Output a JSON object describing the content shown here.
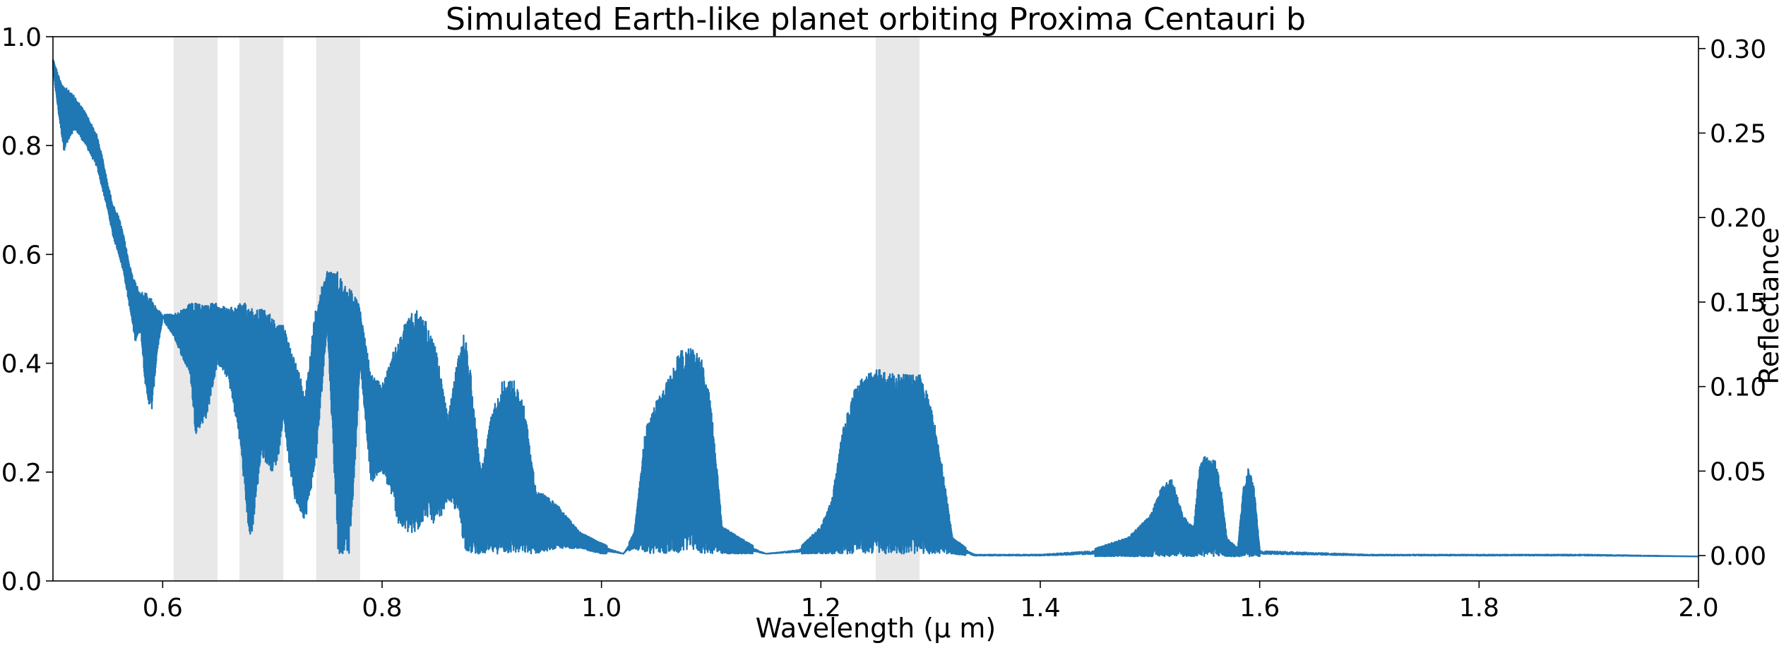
{
  "chart_data": {
    "type": "line",
    "title": "Simulated Earth-like planet orbiting Proxima Centauri b",
    "xlabel": "Wavelength ($\\mu$ m)",
    "xlabel_display": "Wavelength (μ m)",
    "ylabel_left": "",
    "ylabel_right": "Reflectance",
    "xlim": [
      0.5,
      2.0
    ],
    "ylim_left": [
      0.0,
      1.0
    ],
    "ylim_right": [
      -0.015,
      0.307
    ],
    "x_ticks": [
      0.6,
      0.8,
      1.0,
      1.2,
      1.4,
      1.6,
      1.8,
      2.0
    ],
    "x_tick_labels": [
      "0.6",
      "0.8",
      "1.0",
      "1.2",
      "1.4",
      "1.6",
      "1.8",
      "2.0"
    ],
    "y_left_ticks": [
      0.0,
      0.2,
      0.4,
      0.6,
      0.8,
      1.0
    ],
    "y_left_tick_labels": [
      "0.0",
      "0.2",
      "0.4",
      "0.6",
      "0.8",
      "1.0"
    ],
    "y_right_ticks": [
      0.0,
      0.05,
      0.1,
      0.15,
      0.2,
      0.25,
      0.3
    ],
    "y_right_tick_labels": [
      "0.00",
      "0.05",
      "0.10",
      "0.15",
      "0.20",
      "0.25",
      "0.30"
    ],
    "grid": false,
    "legend": "none",
    "line_color": "#1f77b4",
    "band_color": "#e8e8e8",
    "shaded_bands": [
      [
        0.61,
        0.65
      ],
      [
        0.67,
        0.71
      ],
      [
        0.74,
        0.78
      ],
      [
        1.25,
        1.29
      ]
    ],
    "series": [
      {
        "axis": "left",
        "upper_envelope": [
          [
            0.5,
            0.96
          ],
          [
            0.505,
            0.93
          ],
          [
            0.51,
            0.91
          ],
          [
            0.52,
            0.89
          ],
          [
            0.53,
            0.86
          ],
          [
            0.54,
            0.82
          ],
          [
            0.545,
            0.78
          ],
          [
            0.55,
            0.73
          ],
          [
            0.555,
            0.69
          ],
          [
            0.56,
            0.67
          ],
          [
            0.565,
            0.63
          ],
          [
            0.57,
            0.58
          ],
          [
            0.575,
            0.55
          ],
          [
            0.58,
            0.53
          ],
          [
            0.585,
            0.53
          ],
          [
            0.59,
            0.52
          ],
          [
            0.595,
            0.5
          ],
          [
            0.6,
            0.49
          ],
          [
            0.61,
            0.49
          ],
          [
            0.62,
            0.5
          ],
          [
            0.625,
            0.51
          ],
          [
            0.63,
            0.51
          ],
          [
            0.64,
            0.51
          ],
          [
            0.65,
            0.51
          ],
          [
            0.66,
            0.5
          ],
          [
            0.67,
            0.51
          ],
          [
            0.68,
            0.51
          ],
          [
            0.69,
            0.5
          ],
          [
            0.7,
            0.49
          ],
          [
            0.705,
            0.47
          ],
          [
            0.71,
            0.47
          ],
          [
            0.715,
            0.44
          ],
          [
            0.72,
            0.41
          ],
          [
            0.73,
            0.35
          ],
          [
            0.74,
            0.51
          ],
          [
            0.75,
            0.57
          ],
          [
            0.76,
            0.57
          ],
          [
            0.77,
            0.54
          ],
          [
            0.775,
            0.53
          ],
          [
            0.78,
            0.5
          ],
          [
            0.79,
            0.38
          ],
          [
            0.8,
            0.36
          ],
          [
            0.81,
            0.42
          ],
          [
            0.815,
            0.44
          ],
          [
            0.82,
            0.47
          ],
          [
            0.83,
            0.5
          ],
          [
            0.84,
            0.48
          ],
          [
            0.85,
            0.42
          ],
          [
            0.86,
            0.3
          ],
          [
            0.87,
            0.42
          ],
          [
            0.875,
            0.46
          ],
          [
            0.88,
            0.4
          ],
          [
            0.89,
            0.2
          ],
          [
            0.9,
            0.31
          ],
          [
            0.91,
            0.37
          ],
          [
            0.92,
            0.37
          ],
          [
            0.93,
            0.32
          ],
          [
            0.94,
            0.17
          ],
          [
            0.96,
            0.14
          ],
          [
            0.98,
            0.09
          ],
          [
            1.0,
            0.07
          ],
          [
            1.02,
            0.05
          ],
          [
            1.03,
            0.09
          ],
          [
            1.04,
            0.28
          ],
          [
            1.05,
            0.33
          ],
          [
            1.06,
            0.37
          ],
          [
            1.07,
            0.42
          ],
          [
            1.08,
            0.43
          ],
          [
            1.09,
            0.42
          ],
          [
            1.1,
            0.33
          ],
          [
            1.11,
            0.1
          ],
          [
            1.15,
            0.05
          ],
          [
            1.18,
            0.06
          ],
          [
            1.2,
            0.1
          ],
          [
            1.21,
            0.15
          ],
          [
            1.22,
            0.28
          ],
          [
            1.23,
            0.35
          ],
          [
            1.24,
            0.38
          ],
          [
            1.25,
            0.39
          ],
          [
            1.27,
            0.38
          ],
          [
            1.29,
            0.38
          ],
          [
            1.3,
            0.33
          ],
          [
            1.31,
            0.22
          ],
          [
            1.32,
            0.08
          ],
          [
            1.34,
            0.05
          ],
          [
            1.4,
            0.05
          ],
          [
            1.45,
            0.06
          ],
          [
            1.48,
            0.08
          ],
          [
            1.5,
            0.12
          ],
          [
            1.51,
            0.17
          ],
          [
            1.52,
            0.19
          ],
          [
            1.53,
            0.12
          ],
          [
            1.54,
            0.1
          ],
          [
            1.545,
            0.21
          ],
          [
            1.55,
            0.23
          ],
          [
            1.56,
            0.22
          ],
          [
            1.565,
            0.17
          ],
          [
            1.57,
            0.08
          ],
          [
            1.58,
            0.06
          ],
          [
            1.585,
            0.17
          ],
          [
            1.59,
            0.21
          ],
          [
            1.595,
            0.17
          ],
          [
            1.6,
            0.06
          ],
          [
            1.7,
            0.05
          ],
          [
            1.8,
            0.05
          ],
          [
            1.9,
            0.05
          ],
          [
            2.0,
            0.045
          ]
        ],
        "lower_envelope": [
          [
            0.5,
            0.94
          ],
          [
            0.505,
            0.86
          ],
          [
            0.51,
            0.79
          ],
          [
            0.52,
            0.83
          ],
          [
            0.53,
            0.8
          ],
          [
            0.54,
            0.76
          ],
          [
            0.545,
            0.72
          ],
          [
            0.55,
            0.68
          ],
          [
            0.555,
            0.63
          ],
          [
            0.56,
            0.6
          ],
          [
            0.565,
            0.56
          ],
          [
            0.57,
            0.5
          ],
          [
            0.575,
            0.44
          ],
          [
            0.58,
            0.46
          ],
          [
            0.585,
            0.34
          ],
          [
            0.59,
            0.31
          ],
          [
            0.595,
            0.42
          ],
          [
            0.6,
            0.48
          ],
          [
            0.61,
            0.45
          ],
          [
            0.62,
            0.4
          ],
          [
            0.625,
            0.38
          ],
          [
            0.63,
            0.27
          ],
          [
            0.64,
            0.3
          ],
          [
            0.65,
            0.4
          ],
          [
            0.66,
            0.37
          ],
          [
            0.67,
            0.26
          ],
          [
            0.68,
            0.06
          ],
          [
            0.69,
            0.23
          ],
          [
            0.7,
            0.2
          ],
          [
            0.705,
            0.22
          ],
          [
            0.71,
            0.3
          ],
          [
            0.715,
            0.22
          ],
          [
            0.72,
            0.15
          ],
          [
            0.73,
            0.11
          ],
          [
            0.74,
            0.22
          ],
          [
            0.75,
            0.47
          ],
          [
            0.76,
            0.05
          ],
          [
            0.77,
            0.05
          ],
          [
            0.775,
            0.2
          ],
          [
            0.78,
            0.4
          ],
          [
            0.79,
            0.18
          ],
          [
            0.8,
            0.2
          ],
          [
            0.81,
            0.15
          ],
          [
            0.815,
            0.1
          ],
          [
            0.82,
            0.09
          ],
          [
            0.83,
            0.08
          ],
          [
            0.84,
            0.12
          ],
          [
            0.85,
            0.1
          ],
          [
            0.86,
            0.15
          ],
          [
            0.87,
            0.12
          ],
          [
            0.875,
            0.06
          ],
          [
            0.88,
            0.05
          ],
          [
            0.89,
            0.05
          ],
          [
            0.9,
            0.05
          ],
          [
            0.91,
            0.05
          ],
          [
            0.92,
            0.05
          ],
          [
            0.93,
            0.05
          ],
          [
            0.94,
            0.05
          ],
          [
            0.96,
            0.06
          ],
          [
            0.98,
            0.06
          ],
          [
            1.0,
            0.05
          ],
          [
            1.02,
            0.05
          ],
          [
            1.03,
            0.06
          ],
          [
            1.04,
            0.05
          ],
          [
            1.05,
            0.05
          ],
          [
            1.06,
            0.05
          ],
          [
            1.07,
            0.05
          ],
          [
            1.08,
            0.06
          ],
          [
            1.09,
            0.05
          ],
          [
            1.1,
            0.05
          ],
          [
            1.11,
            0.05
          ],
          [
            1.15,
            0.05
          ],
          [
            1.18,
            0.05
          ],
          [
            1.2,
            0.05
          ],
          [
            1.21,
            0.05
          ],
          [
            1.22,
            0.05
          ],
          [
            1.23,
            0.05
          ],
          [
            1.24,
            0.05
          ],
          [
            1.25,
            0.05
          ],
          [
            1.27,
            0.05
          ],
          [
            1.29,
            0.05
          ],
          [
            1.3,
            0.05
          ],
          [
            1.31,
            0.05
          ],
          [
            1.32,
            0.05
          ],
          [
            1.34,
            0.045
          ],
          [
            1.4,
            0.045
          ],
          [
            1.45,
            0.045
          ],
          [
            1.48,
            0.045
          ],
          [
            1.5,
            0.045
          ],
          [
            1.51,
            0.045
          ],
          [
            1.52,
            0.045
          ],
          [
            1.53,
            0.045
          ],
          [
            1.54,
            0.045
          ],
          [
            1.545,
            0.045
          ],
          [
            1.55,
            0.045
          ],
          [
            1.56,
            0.045
          ],
          [
            1.565,
            0.045
          ],
          [
            1.57,
            0.045
          ],
          [
            1.58,
            0.045
          ],
          [
            1.585,
            0.045
          ],
          [
            1.59,
            0.045
          ],
          [
            1.595,
            0.045
          ],
          [
            1.6,
            0.045
          ],
          [
            1.7,
            0.045
          ],
          [
            1.8,
            0.045
          ],
          [
            1.9,
            0.045
          ],
          [
            2.0,
            0.045
          ]
        ]
      }
    ]
  }
}
